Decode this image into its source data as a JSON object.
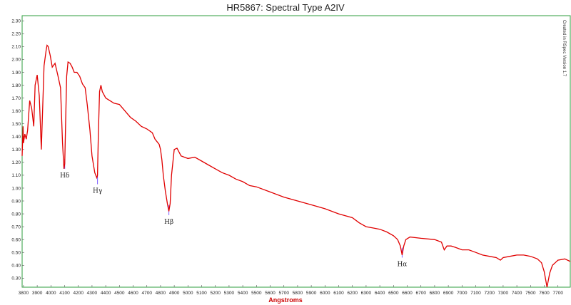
{
  "chart_data": {
    "type": "line",
    "title": "HR5867: Spectral Type A2IV",
    "xlabel": "Angstroms",
    "ylabel": "",
    "side_note": "Created in RSpec Version 1.7",
    "xlim": [
      3790,
      7790
    ],
    "ylim": [
      0.23,
      2.34
    ],
    "x_ticks": [
      3800,
      3900,
      4000,
      4100,
      4200,
      4300,
      4400,
      4500,
      4600,
      4700,
      4800,
      4900,
      5000,
      5100,
      5200,
      5300,
      5400,
      5500,
      5600,
      5700,
      5800,
      5900,
      6000,
      6100,
      6200,
      6300,
      6400,
      6500,
      6600,
      6700,
      6800,
      6900,
      7000,
      7100,
      7200,
      7300,
      7400,
      7500,
      7600,
      7700
    ],
    "y_ticks": [
      0.3,
      0.4,
      0.5,
      0.6,
      0.7,
      0.8,
      0.9,
      1.0,
      1.1,
      1.2,
      1.3,
      1.4,
      1.5,
      1.6,
      1.7,
      1.8,
      1.9,
      2.0,
      2.1,
      2.2,
      2.3
    ],
    "series": [
      {
        "color": "#e00000",
        "x": [
          3790,
          3797,
          3800,
          3810,
          3820,
          3830,
          3845,
          3860,
          3875,
          3885,
          3900,
          3915,
          3930,
          3950,
          3965,
          3972,
          3980,
          3995,
          4010,
          4030,
          4050,
          4070,
          4085,
          4095,
          4101,
          4108,
          4115,
          4125,
          4140,
          4155,
          4170,
          4190,
          4210,
          4230,
          4250,
          4265,
          4285,
          4300,
          4320,
          4335,
          4340,
          4346,
          4355,
          4365,
          4375,
          4385,
          4400,
          4430,
          4460,
          4500,
          4540,
          4580,
          4620,
          4660,
          4700,
          4740,
          4760,
          4790,
          4800,
          4810,
          4820,
          4835,
          4850,
          4861,
          4870,
          4880,
          4900,
          4920,
          4950,
          5000,
          5050,
          5100,
          5150,
          5200,
          5250,
          5300,
          5350,
          5400,
          5450,
          5500,
          5600,
          5700,
          5800,
          5900,
          6000,
          6100,
          6200,
          6250,
          6300,
          6350,
          6400,
          6450,
          6500,
          6530,
          6550,
          6563,
          6575,
          6590,
          6620,
          6700,
          6800,
          6850,
          6870,
          6890,
          6920,
          6950,
          7000,
          7050,
          7100,
          7150,
          7200,
          7250,
          7280,
          7300,
          7350,
          7400,
          7450,
          7500,
          7550,
          7580,
          7600,
          7620,
          7640,
          7660,
          7680,
          7700,
          7750,
          7790
        ],
        "y": [
          1.25,
          1.48,
          1.35,
          1.42,
          1.38,
          1.45,
          1.68,
          1.62,
          1.48,
          1.8,
          1.88,
          1.72,
          1.3,
          1.95,
          2.07,
          2.11,
          2.1,
          2.03,
          1.94,
          1.97,
          1.88,
          1.78,
          1.35,
          1.15,
          1.19,
          1.55,
          1.87,
          1.98,
          1.97,
          1.94,
          1.9,
          1.9,
          1.87,
          1.81,
          1.78,
          1.65,
          1.45,
          1.25,
          1.12,
          1.08,
          1.1,
          1.42,
          1.75,
          1.8,
          1.75,
          1.73,
          1.7,
          1.68,
          1.66,
          1.65,
          1.6,
          1.55,
          1.52,
          1.48,
          1.46,
          1.43,
          1.38,
          1.34,
          1.3,
          1.22,
          1.1,
          0.98,
          0.88,
          0.82,
          0.88,
          1.1,
          1.3,
          1.31,
          1.25,
          1.23,
          1.24,
          1.21,
          1.18,
          1.15,
          1.12,
          1.1,
          1.07,
          1.05,
          1.02,
          1.01,
          0.97,
          0.93,
          0.9,
          0.87,
          0.84,
          0.8,
          0.77,
          0.73,
          0.7,
          0.69,
          0.68,
          0.66,
          0.63,
          0.6,
          0.55,
          0.48,
          0.55,
          0.6,
          0.62,
          0.61,
          0.6,
          0.58,
          0.52,
          0.55,
          0.55,
          0.54,
          0.52,
          0.52,
          0.5,
          0.48,
          0.47,
          0.46,
          0.44,
          0.46,
          0.47,
          0.48,
          0.48,
          0.47,
          0.45,
          0.42,
          0.35,
          0.23,
          0.34,
          0.4,
          0.42,
          0.44,
          0.45,
          0.43
        ]
      }
    ],
    "annotations": [
      {
        "label": "Hδ",
        "x": 4101,
        "y": 1.15
      },
      {
        "label": "Hγ",
        "x": 4340,
        "y": 1.03
      },
      {
        "label": "Hβ",
        "x": 4861,
        "y": 0.79
      },
      {
        "label": "Hα",
        "x": 6563,
        "y": 0.46
      }
    ],
    "grid": false,
    "legend": "none"
  }
}
